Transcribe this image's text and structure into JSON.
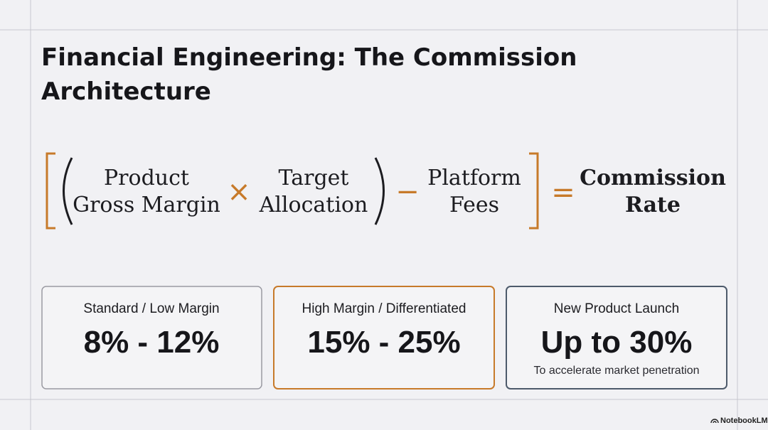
{
  "header": {
    "title_lines": [
      "Financial Engineering: The Commission",
      "Architecture"
    ]
  },
  "formula": {
    "terms": [
      {
        "lines": [
          "Product",
          "Gross Margin"
        ]
      },
      {
        "lines": [
          "Target",
          "Allocation"
        ]
      },
      {
        "lines": [
          "Platform",
          "Fees"
        ]
      },
      {
        "lines": [
          "Commission",
          "Rate"
        ]
      }
    ],
    "operators": [
      "×",
      "−",
      "="
    ]
  },
  "cards": [
    {
      "label": "Standard / Low Margin",
      "value": "8% - 12%"
    },
    {
      "label": "High Margin / Differentiated",
      "value": "15% - 25%"
    },
    {
      "label": "New Product Launch",
      "value": "Up to 30%",
      "note": "To accelerate market penetration"
    }
  ],
  "footer": {
    "brand": "NotebookLM"
  }
}
